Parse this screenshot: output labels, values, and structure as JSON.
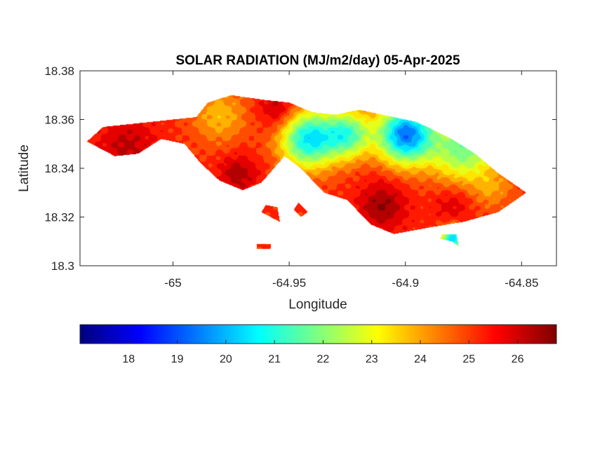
{
  "figure": {
    "title": "SOLAR RADIATION (MJ/m2/day) 05-Apr-2025",
    "xlabel": "Longitude",
    "ylabel": "Latitude"
  },
  "chart_data": {
    "type": "heatmap",
    "title": "SOLAR RADIATION (MJ/m2/day) 05-Apr-2025",
    "xlabel": "Longitude",
    "ylabel": "Latitude",
    "xlim": [
      -65.04,
      -64.835
    ],
    "ylim": [
      18.3,
      18.38
    ],
    "x_ticks": [
      -65,
      -64.95,
      -64.9,
      -64.85
    ],
    "x_tick_labels": [
      "-65",
      "-64.95",
      "-64.9",
      "-64.85"
    ],
    "y_ticks": [
      18.3,
      18.32,
      18.34,
      18.36,
      18.38
    ],
    "y_tick_labels": [
      "18.3",
      "18.32",
      "18.34",
      "18.36",
      "18.38"
    ],
    "colormap": "jet",
    "colorbar": {
      "location": "bottom",
      "range": [
        17.0,
        26.8
      ],
      "ticks": [
        18,
        19,
        20,
        21,
        22,
        23,
        24,
        25,
        26
      ],
      "tick_labels": [
        "18",
        "19",
        "20",
        "21",
        "22",
        "23",
        "24",
        "25",
        "26"
      ]
    },
    "grid": false,
    "background_value": 25.2,
    "hotspots": [
      {
        "lon": -65.02,
        "lat": 18.349,
        "value": 26.2,
        "radius": 0.012
      },
      {
        "lon": -64.98,
        "lat": 18.362,
        "value": 23.8,
        "radius": 0.012
      },
      {
        "lon": -64.955,
        "lat": 18.364,
        "value": 26.4,
        "radius": 0.008
      },
      {
        "lon": -64.972,
        "lat": 18.338,
        "value": 26.4,
        "radius": 0.008
      },
      {
        "lon": -64.942,
        "lat": 18.352,
        "value": 20.6,
        "radius": 0.012
      },
      {
        "lon": -64.925,
        "lat": 18.354,
        "value": 21.6,
        "radius": 0.01
      },
      {
        "lon": -64.9,
        "lat": 18.354,
        "value": 19.4,
        "radius": 0.012
      },
      {
        "lon": -64.875,
        "lat": 18.348,
        "value": 21.8,
        "radius": 0.014
      },
      {
        "lon": -64.91,
        "lat": 18.325,
        "value": 26.6,
        "radius": 0.01
      },
      {
        "lon": -64.88,
        "lat": 18.326,
        "value": 26.0,
        "radius": 0.008
      },
      {
        "lon": -64.862,
        "lat": 18.331,
        "value": 24.3,
        "radius": 0.008
      },
      {
        "lon": -64.88,
        "lat": 18.311,
        "value": 20.2,
        "radius": 0.005
      }
    ],
    "regions": [
      {
        "name": "main-island",
        "polygon": [
          [
            -65.037,
            18.351
          ],
          [
            -65.03,
            18.357
          ],
          [
            -65.01,
            18.359
          ],
          [
            -64.99,
            18.361
          ],
          [
            -64.985,
            18.367
          ],
          [
            -64.975,
            18.37
          ],
          [
            -64.96,
            18.368
          ],
          [
            -64.95,
            18.367
          ],
          [
            -64.94,
            18.363
          ],
          [
            -64.93,
            18.362
          ],
          [
            -64.92,
            18.364
          ],
          [
            -64.91,
            18.362
          ],
          [
            -64.895,
            18.359
          ],
          [
            -64.88,
            18.352
          ],
          [
            -64.87,
            18.346
          ],
          [
            -64.86,
            18.338
          ],
          [
            -64.848,
            18.33
          ],
          [
            -64.86,
            18.322
          ],
          [
            -64.875,
            18.318
          ],
          [
            -64.888,
            18.316
          ],
          [
            -64.905,
            18.313
          ],
          [
            -64.915,
            18.317
          ],
          [
            -64.925,
            18.327
          ],
          [
            -64.935,
            18.33
          ],
          [
            -64.945,
            18.34
          ],
          [
            -64.952,
            18.345
          ],
          [
            -64.962,
            18.334
          ],
          [
            -64.97,
            18.331
          ],
          [
            -64.98,
            18.335
          ],
          [
            -64.988,
            18.342
          ],
          [
            -64.995,
            18.35
          ],
          [
            -65.005,
            18.352
          ],
          [
            -65.015,
            18.346
          ],
          [
            -65.025,
            18.345
          ]
        ]
      },
      {
        "name": "islet-1",
        "polygon": [
          [
            -64.962,
            18.322
          ],
          [
            -64.958,
            18.32
          ],
          [
            -64.954,
            18.318
          ],
          [
            -64.955,
            18.324
          ],
          [
            -64.96,
            18.325
          ]
        ]
      },
      {
        "name": "islet-2",
        "polygon": [
          [
            -64.946,
            18.326
          ],
          [
            -64.942,
            18.322
          ],
          [
            -64.945,
            18.32
          ],
          [
            -64.948,
            18.323
          ]
        ]
      },
      {
        "name": "islet-3",
        "polygon": [
          [
            -64.884,
            18.313
          ],
          [
            -64.878,
            18.313
          ],
          [
            -64.877,
            18.308
          ],
          [
            -64.88,
            18.31
          ],
          [
            -64.885,
            18.311
          ]
        ]
      },
      {
        "name": "islet-4",
        "polygon": [
          [
            -64.964,
            18.309
          ],
          [
            -64.958,
            18.309
          ],
          [
            -64.958,
            18.307
          ],
          [
            -64.964,
            18.307
          ]
        ]
      }
    ]
  }
}
